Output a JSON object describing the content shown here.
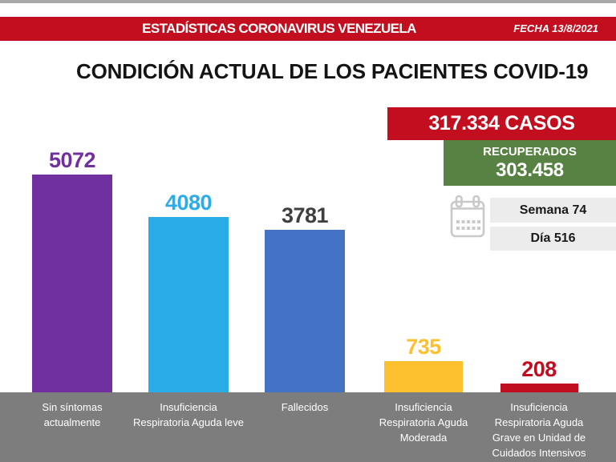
{
  "banner": {
    "title": "ESTADÍSTICAS CORONAVIRUS VENEZUELA",
    "date_label": "FECHA 13/8/2021"
  },
  "page_title": "CONDICIÓN ACTUAL DE LOS PACIENTES COVID-19",
  "summary": {
    "cases_label": "317.334 CASOS",
    "recovered_title": "RECUPERADOS",
    "recovered_value": "303.458",
    "week_label": "Semana 74",
    "day_label": "Día 516",
    "icon": "calendar-icon"
  },
  "colors": {
    "banner_red": "#c20e1e",
    "recovered_green": "#588144",
    "pill_gray": "#ececec",
    "band_gray": "#7d7d7d",
    "top_line_gray": "#a8a8a8",
    "calendar_icon_gray": "#c9c9c9",
    "title_black": "#141414"
  },
  "chart_data": {
    "type": "bar",
    "title": "CONDICIÓN ACTUAL DE LOS PACIENTES COVID-19",
    "categories": [
      "Sin síntomas actualmente",
      "Insuficiencia Respiratoria Aguda leve",
      "Fallecidos",
      "Insuficiencia Respiratoria Aguda Moderada",
      "Insuficiencia Respiratoria Aguda Grave en Unidad de Cuidados Intensivos"
    ],
    "category_label_lines": [
      [
        "Sin síntomas",
        "actualmente"
      ],
      [
        "Insuficiencia",
        "Respiratoria Aguda leve"
      ],
      [
        "Fallecidos"
      ],
      [
        "Insuficiencia",
        "Respiratoria Aguda",
        "Moderada"
      ],
      [
        "Insuficiencia",
        "Respiratoria Aguda",
        "Grave en Unidad de",
        "Cuidados Intensivos"
      ]
    ],
    "values": [
      5072,
      4080,
      3781,
      735,
      208
    ],
    "bar_colors": [
      "#7030a0",
      "#29ace8",
      "#4472c4",
      "#fdc12f",
      "#c00d20"
    ],
    "value_label_colors": [
      "#7030a0",
      "#29ace8",
      "#3f3f3f",
      "#fdc12f",
      "#c00d20"
    ],
    "xlabel": "",
    "ylabel": "",
    "ylim": [
      0,
      5500
    ],
    "grid": false,
    "legend": false,
    "value_labels_shown": true
  }
}
